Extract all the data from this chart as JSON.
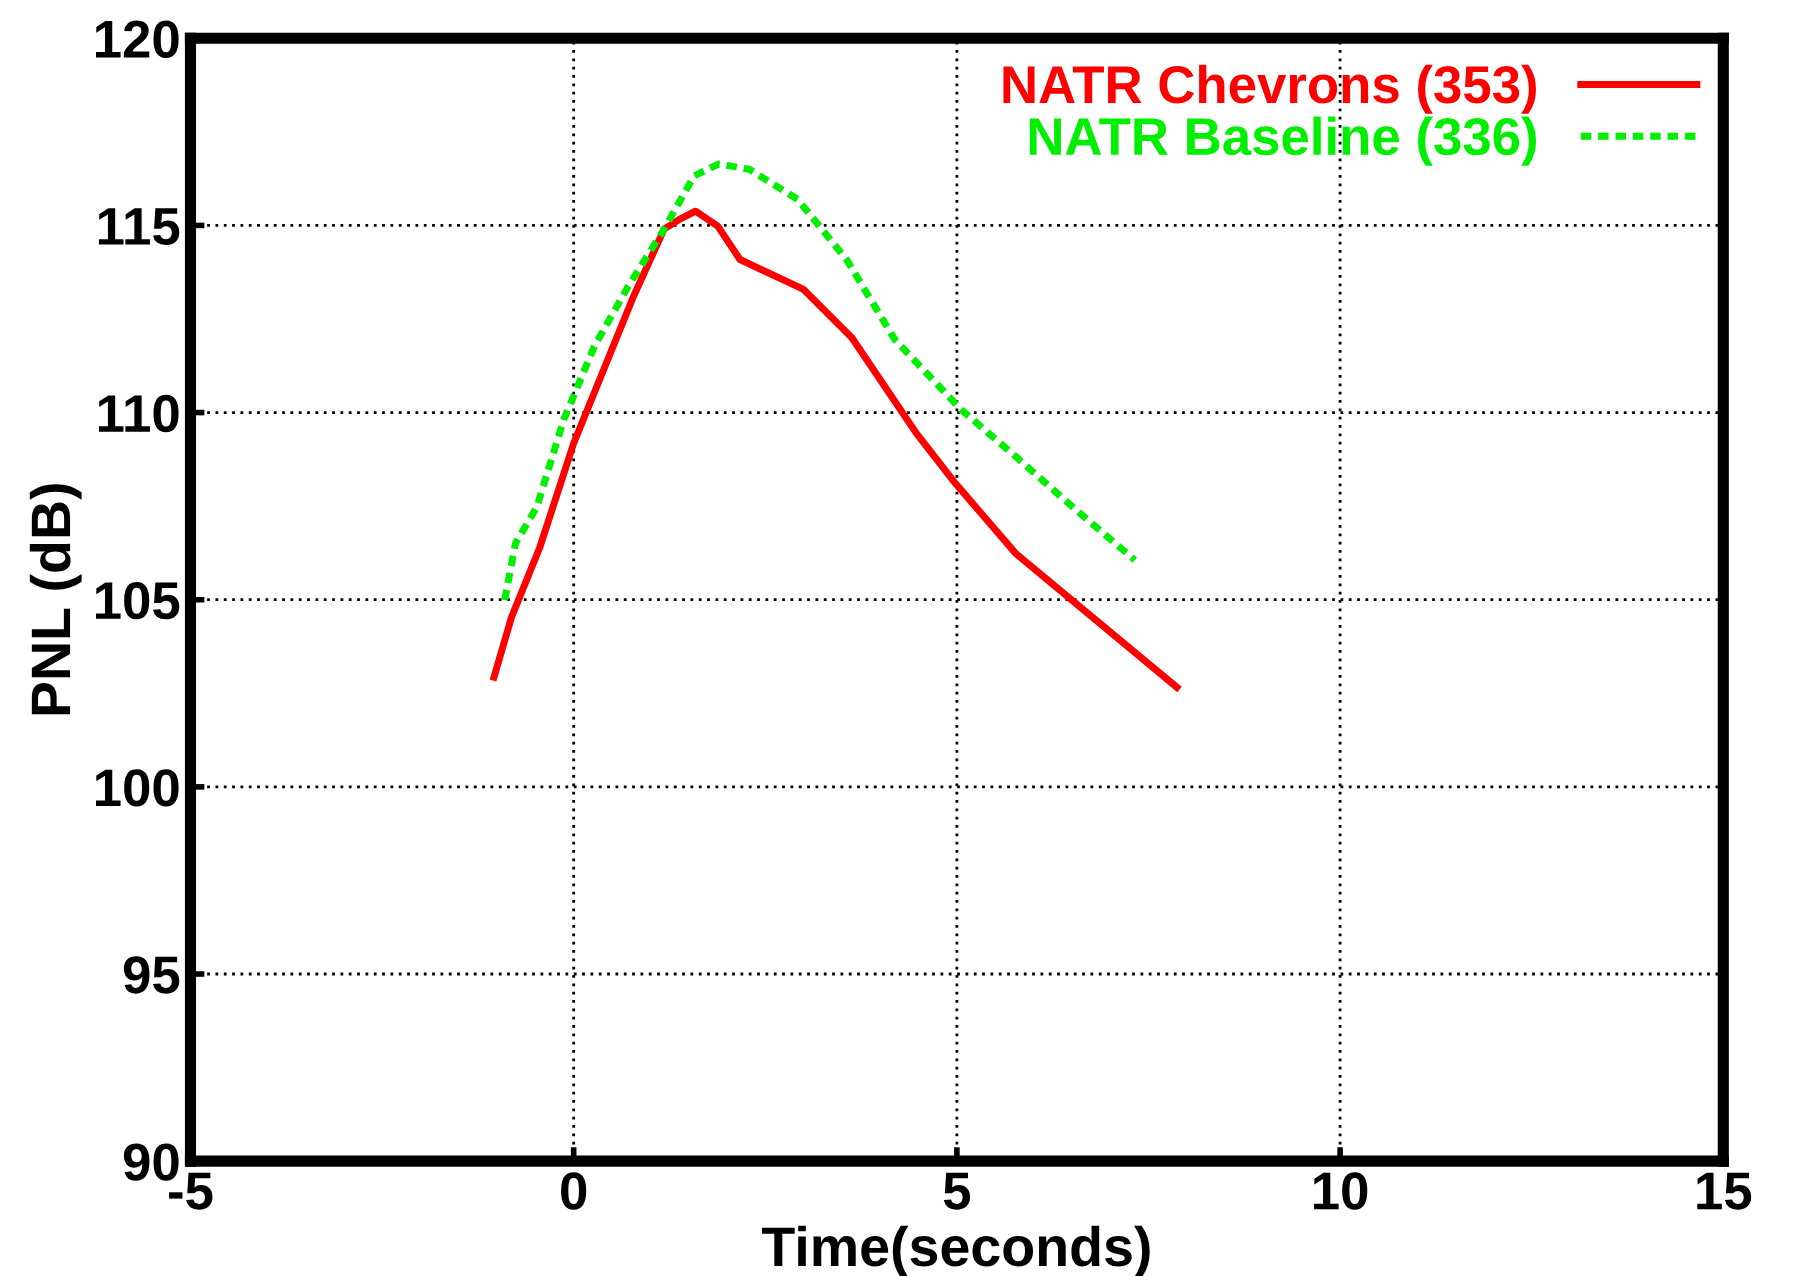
{
  "chart_data": {
    "type": "line",
    "xlabel": "Time(seconds)",
    "ylabel": "PNL (dB)",
    "xlim": [
      -5,
      15
    ],
    "xticks": [
      -5,
      0,
      5,
      10,
      15
    ],
    "ylim": [
      90,
      120
    ],
    "yticks": [
      90,
      95,
      100,
      105,
      110,
      115,
      120
    ],
    "grid": true,
    "legend": "top right",
    "series": [
      {
        "name": "NATR Chevrons (353)",
        "color": "#ff0000",
        "line_style": "solid",
        "x": [
          -1.04,
          -0.81,
          -0.44,
          0,
          0.78,
          1.18,
          1.38,
          1.59,
          1.88,
          2.17,
          3.0,
          3.63,
          4.47,
          4.98,
          5.77,
          7.87
        ],
        "values": [
          102.93,
          104.54,
          106.41,
          109.18,
          113.1,
          114.9,
          115.16,
          115.38,
          114.98,
          114.09,
          113.29,
          112.0,
          109.45,
          108.11,
          106.23,
          102.66
        ]
      },
      {
        "name": "NATR Baseline (336)",
        "color": "#00ee00",
        "line_style": "dotted",
        "x": [
          -0.9,
          -0.76,
          -0.48,
          -0.13,
          0.27,
          0.71,
          1.18,
          1.57,
          1.89,
          2.29,
          2.92,
          3.56,
          4.19,
          5.06,
          5.77,
          6.56,
          7.32
        ],
        "values": [
          104.99,
          106.5,
          107.48,
          109.81,
          111.77,
          113.37,
          114.9,
          116.32,
          116.64,
          116.5,
          115.7,
          114.09,
          111.95,
          110.07,
          108.82,
          107.39,
          106.06
        ]
      }
    ]
  }
}
